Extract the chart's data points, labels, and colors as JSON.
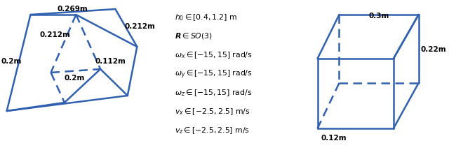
{
  "color": "#3060b0",
  "bg_color": "#ffffff",
  "text_color": "#000000",
  "line_width": 1.8,
  "text_lines": [
    "$h_0 \\in [0.4, 1.2]$ m",
    "$\\boldsymbol{R} \\in SO(3)$",
    "$\\omega_x \\in [-15, 15]$ rad/s",
    "$\\omega_y \\in [-15, 15]$ rad/s",
    "$\\omega_z \\in [-15, 15]$ rad/s",
    "$v_x \\in [-2.5, 2.5]$ m/s",
    "$v_z \\in [-2.5, 2.5]$ m/s"
  ],
  "label_fontsize": 7.5,
  "label_fontweight": "bold",
  "text_fontsize": 7.8
}
